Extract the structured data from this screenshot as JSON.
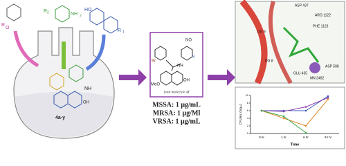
{
  "flask": {
    "substituents": [
      "R",
      "R",
      "HO",
      "R",
      "O",
      "NH"
    ],
    "r2": "2",
    "r1": "1",
    "nh2": "NH",
    "nh2sub": "2",
    "product": "4a-y",
    "oh": "OH",
    "nh": "NH"
  },
  "lead": {
    "caption": "lead molecule 4f",
    "br": "Br",
    "no2": "NO",
    "meo": "MeO",
    "oh": "OH",
    "nh": "NH",
    "n": "N",
    "mic": [
      "MSSA: 1 μg/mL",
      "MRSA: 1 μg/Ml",
      "VRSA: 1 μg/mL"
    ]
  },
  "docking": {
    "labels": [
      "ASP 437",
      "ARG 1122",
      "PHE 1123",
      "DG 9",
      "DG 8",
      "GLU 435",
      "ASP 508",
      "MN 2492"
    ]
  },
  "chart_data": {
    "type": "line",
    "x_label": "Time",
    "y_label": "CFU/mL (log₁₀)",
    "categories": [
      "0 hr",
      "1 hr",
      "6 hr",
      "24 hr"
    ],
    "ylim": [
      0,
      10
    ],
    "yticks": [
      0,
      2,
      4,
      6,
      8,
      10
    ],
    "series": [
      {
        "color": "#3a5bbf",
        "values": [
          6,
          6,
          6,
          9.8
        ]
      },
      {
        "color": "#8e3fa8",
        "values": [
          6,
          5.8,
          7,
          9.4
        ]
      },
      {
        "color": "#e08a2a",
        "values": [
          6,
          4,
          2,
          9
        ]
      },
      {
        "color": "#3aa845",
        "values": [
          6,
          4.5,
          0.2,
          null
        ]
      }
    ]
  }
}
